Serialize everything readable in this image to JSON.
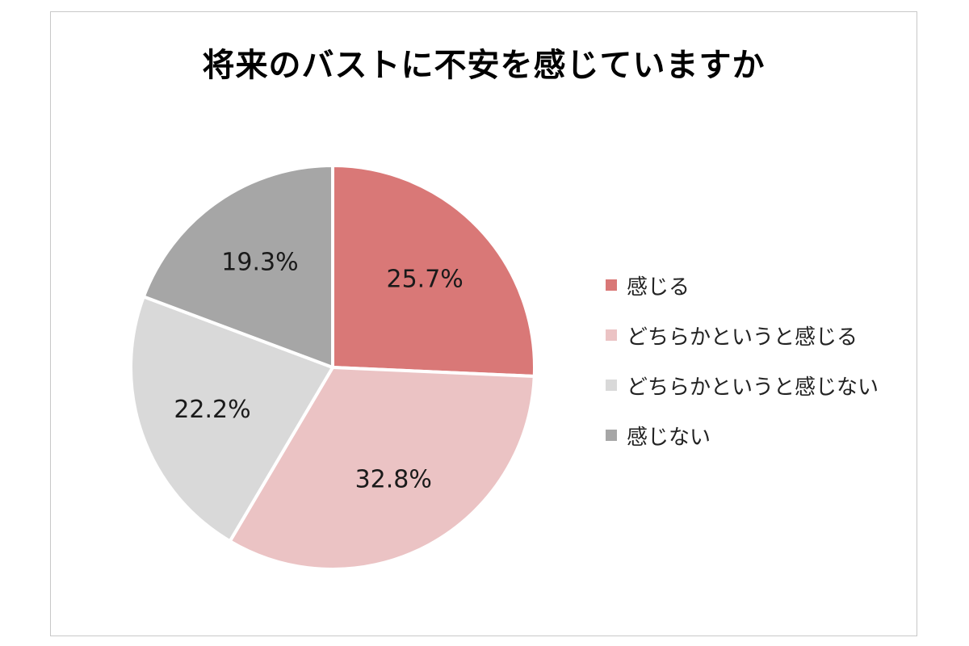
{
  "chart_data": {
    "type": "pie",
    "title": "将来のバストに不安を感じていますか",
    "categories": [
      "感じる",
      "どちらかというと感じる",
      "どちらかというと感じない",
      "感じない"
    ],
    "values": [
      25.7,
      32.8,
      22.2,
      19.3
    ],
    "data_labels": [
      "25.7%",
      "32.8%",
      "22.2%",
      "19.3%"
    ],
    "colors": [
      "#d97877",
      "#ebc3c4",
      "#d9d9d9",
      "#a6a6a6"
    ],
    "start_angle_deg": 0,
    "direction": "clockwise",
    "legend_position": "right"
  }
}
